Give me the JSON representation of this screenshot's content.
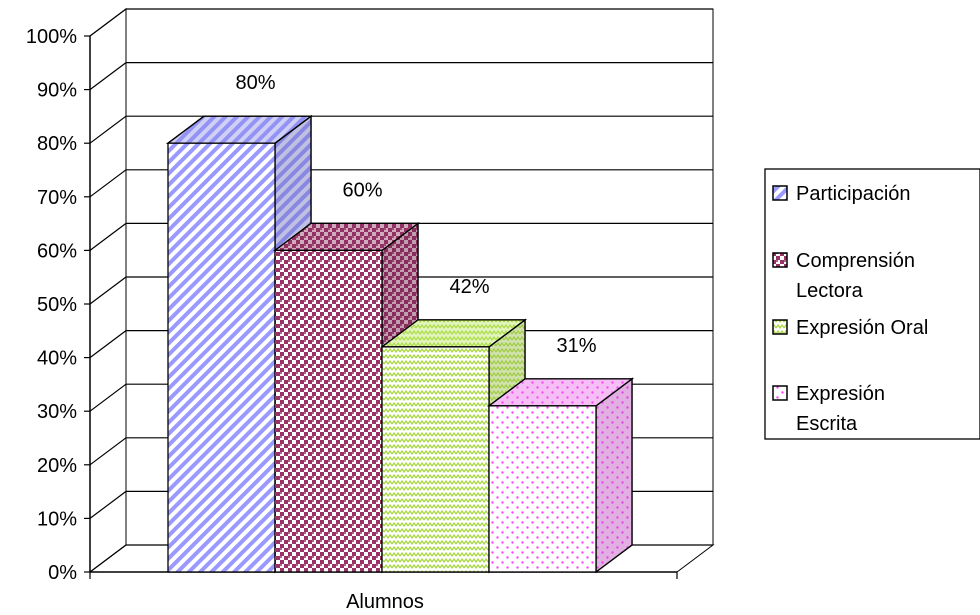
{
  "chart_data": {
    "type": "bar",
    "style": "3d-clustered",
    "categories": [
      "Alumnos"
    ],
    "xlabel": "Alumnos",
    "ylim": [
      0,
      100
    ],
    "y_ticks": [
      "0%",
      "10%",
      "20%",
      "30%",
      "40%",
      "50%",
      "60%",
      "70%",
      "80%",
      "90%",
      "100%"
    ],
    "grid": true,
    "legend_position": "right",
    "series": [
      {
        "name": "Participación",
        "legend_lines": [
          "Participación"
        ],
        "values": [
          80
        ],
        "label": "80%",
        "color": "#9999ff",
        "pattern": "diagonal-stripes"
      },
      {
        "name": "Comprensión Lectora",
        "legend_lines": [
          "Comprensión",
          "Lectora"
        ],
        "values": [
          60
        ],
        "label": "60%",
        "color": "#993366",
        "pattern": "checker"
      },
      {
        "name": "Expresión Oral",
        "legend_lines": [
          "Expresión Oral"
        ],
        "values": [
          42
        ],
        "label": "42%",
        "color": "#ccff66",
        "pattern": "zigzag"
      },
      {
        "name": "Expresión Escrita",
        "legend_lines": [
          "Expresión",
          "Escrita"
        ],
        "values": [
          31
        ],
        "label": "31%",
        "color": "#ff66ff",
        "pattern": "dots"
      }
    ]
  }
}
